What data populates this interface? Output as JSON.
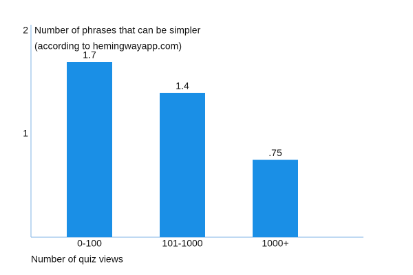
{
  "chart_data": {
    "type": "bar",
    "title": "Number of phrases that can be simpler",
    "subtitle": "(according to hemingwayapp.com)",
    "x_label": "Number of quiz views",
    "categories": [
      "0-100",
      "101-1000",
      "1000+"
    ],
    "values": [
      1.7,
      1.4,
      0.75
    ],
    "value_labels": [
      "1.7",
      "1.4",
      ".75"
    ],
    "color": "#1a8fe6",
    "ylim": [
      0,
      2
    ],
    "yticks": [
      1,
      2
    ],
    "grid": false
  }
}
